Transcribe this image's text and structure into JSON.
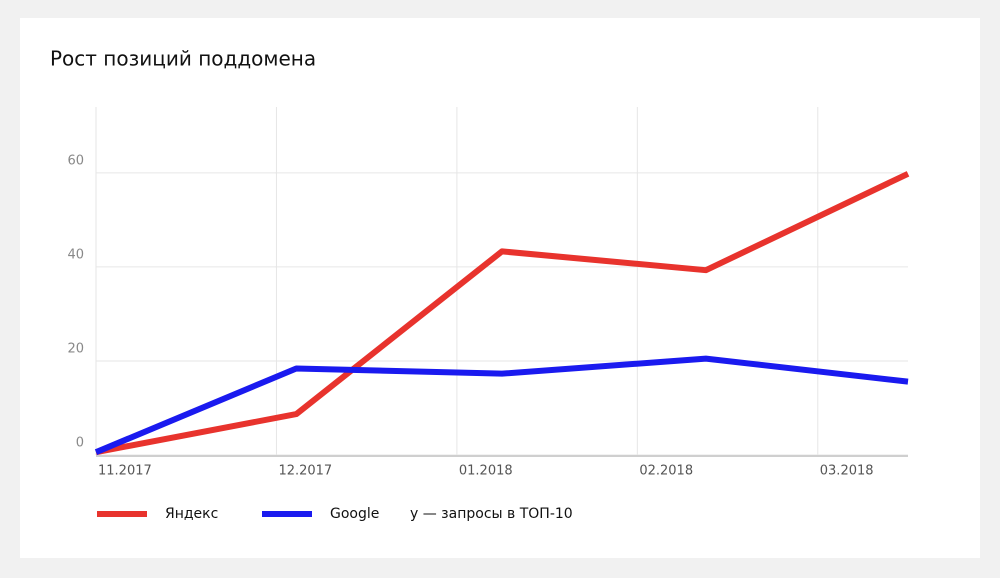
{
  "chart_data": {
    "type": "line",
    "title": "Рост позиций поддомена",
    "annotation": "y — запросы в ТОП-10",
    "x": [
      0,
      1.11,
      2.25,
      3.38,
      4.5
    ],
    "xlim": [
      0,
      4.5
    ],
    "xticks": [
      {
        "value": 0,
        "label": "11.2017"
      },
      {
        "value": 1,
        "label": "12.2017"
      },
      {
        "value": 2,
        "label": "01.2018"
      },
      {
        "value": 3,
        "label": "02.2018"
      },
      {
        "value": 4,
        "label": "03.2018"
      }
    ],
    "ylim": [
      0,
      74
    ],
    "yticks": [
      0,
      20,
      40,
      60
    ],
    "grid": true,
    "series": [
      {
        "name": "Яндекс",
        "color": "#e8332d",
        "values": [
          0.6,
          8.7,
          43.3,
          39.3,
          59.8
        ]
      },
      {
        "name": "Google",
        "color": "#1a1aef",
        "values": [
          0.6,
          18.4,
          17.3,
          20.5,
          15.6
        ]
      }
    ]
  }
}
